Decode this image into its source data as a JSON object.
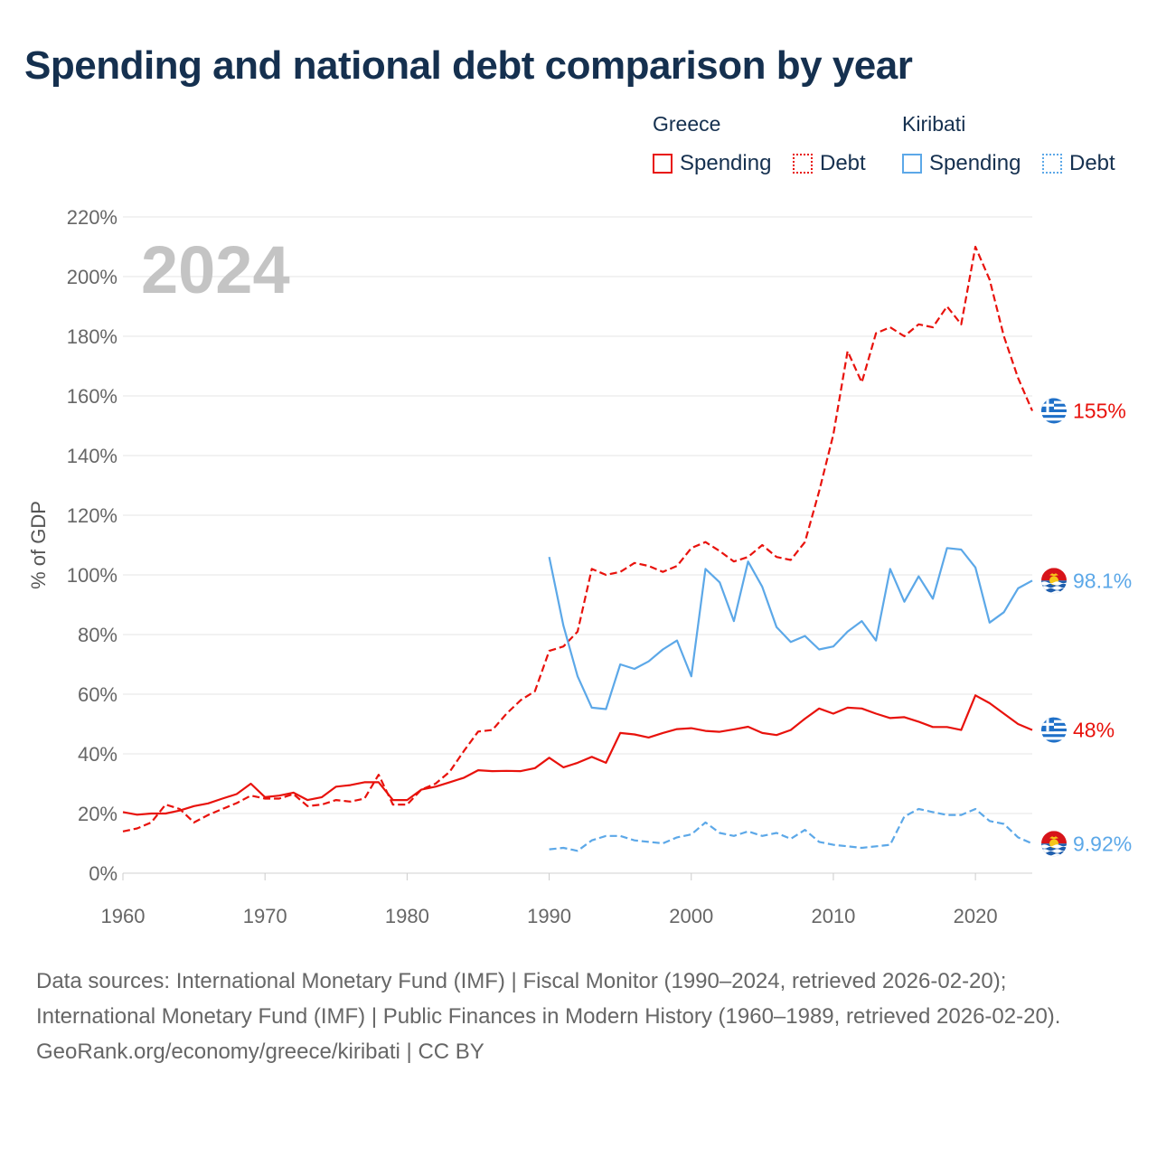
{
  "title": "Spending and national debt comparison by year",
  "legend": {
    "groups": [
      {
        "country": "Greece",
        "items": [
          {
            "label": "Spending",
            "color": "#e8120c",
            "style": "solid"
          },
          {
            "label": "Debt",
            "color": "#e8120c",
            "style": "dotted"
          }
        ]
      },
      {
        "country": "Kiribati",
        "items": [
          {
            "label": "Spending",
            "color": "#5ca8e8",
            "style": "solid"
          },
          {
            "label": "Debt",
            "color": "#5ca8e8",
            "style": "dotted"
          }
        ]
      }
    ]
  },
  "footer": {
    "sources": "Data sources: International Monetary Fund (IMF) | Fiscal Monitor (1990–2024, retrieved 2026-02-20); International Monetary Fund (IMF) | Public Finances in Modern History (1960–1989, retrieved 2026-02-20).",
    "credit": "GeoRank.org/economy/greece/kiribati | CC BY"
  },
  "chart_data": {
    "type": "line",
    "year_label": "2024",
    "ylabel": "% of GDP",
    "xlabel": "",
    "xlim": [
      1960,
      2024
    ],
    "ylim": [
      0,
      220
    ],
    "x_ticks": [
      1960,
      1970,
      1980,
      1990,
      2000,
      2010,
      2020
    ],
    "y_ticks": [
      0,
      20,
      40,
      60,
      80,
      100,
      120,
      140,
      160,
      180,
      200,
      220
    ],
    "y_tick_labels": [
      "0%",
      "20%",
      "40%",
      "60%",
      "80%",
      "100%",
      "120%",
      "140%",
      "160%",
      "180%",
      "200%",
      "220%"
    ],
    "grid": true,
    "series": [
      {
        "name": "Greece Spending",
        "country": "Greece",
        "flag": "greece",
        "color": "#e8120c",
        "dash": "solid",
        "end_label": "48%",
        "x_start": 1960,
        "values": [
          20.5,
          19.6,
          20,
          20,
          21,
          22.5,
          23.4,
          25,
          26.5,
          30,
          25.5,
          26,
          27,
          24.5,
          25.5,
          29,
          29.5,
          30.5,
          30.5,
          24.5,
          24.5,
          28,
          29,
          30.5,
          32,
          34.5,
          34.2,
          34.3,
          34.2,
          35.2,
          38.7,
          35.5,
          37,
          39,
          37,
          47,
          46.5,
          45.5,
          47,
          48.3,
          48.6,
          47.7,
          47.4,
          48.2,
          49.1,
          47,
          46.3,
          48,
          51.8,
          55.2,
          53.5,
          55.5,
          55.2,
          53.5,
          52,
          52.3,
          50.8,
          49,
          49,
          48,
          59.6,
          57,
          53.5,
          50,
          48
        ]
      },
      {
        "name": "Greece Debt",
        "country": "Greece",
        "flag": "greece",
        "color": "#e8120c",
        "dash": "dashed",
        "end_label": "155%",
        "x_start": 1960,
        "values": [
          14,
          15,
          17,
          23,
          21.5,
          17,
          19.5,
          21.5,
          23.5,
          26,
          25,
          25,
          26.5,
          22.5,
          23,
          24.5,
          24,
          25,
          33,
          23,
          23,
          28,
          30,
          34,
          41,
          47.5,
          48,
          53.5,
          58,
          61,
          74.5,
          76,
          81,
          102,
          100,
          101,
          104,
          103,
          101,
          103,
          109,
          111,
          108,
          104.5,
          106,
          110,
          106,
          105,
          111,
          128,
          147,
          175,
          164.5,
          181,
          183,
          180,
          184,
          183,
          190,
          184,
          210,
          199,
          180,
          166,
          155
        ]
      },
      {
        "name": "Kiribati Spending",
        "country": "Kiribati",
        "flag": "kiribati",
        "color": "#5ca8e8",
        "dash": "solid",
        "end_label": "98.1%",
        "x_start": 1990,
        "values": [
          106,
          83,
          66,
          55.5,
          55,
          70,
          68.5,
          71,
          75,
          78,
          66,
          102,
          97.5,
          84.5,
          104.5,
          96,
          82.5,
          77.5,
          79.5,
          75,
          76,
          81,
          84.5,
          78,
          102,
          91,
          99.5,
          92,
          109,
          108.5,
          102.5,
          84,
          87.5,
          95.5,
          98.1
        ]
      },
      {
        "name": "Kiribati Debt",
        "country": "Kiribati",
        "flag": "kiribati",
        "color": "#5ca8e8",
        "dash": "dashed",
        "end_label": "9.92%",
        "x_start": 1990,
        "values": [
          8,
          8.5,
          7.5,
          11,
          12.5,
          12.5,
          11,
          10.5,
          10,
          12,
          13,
          17,
          13.5,
          12.5,
          14,
          12.5,
          13.5,
          11.5,
          14.5,
          10.5,
          9.5,
          9,
          8.5,
          9,
          9.5,
          19,
          21.5,
          20.5,
          19.5,
          19.5,
          21.5,
          17.5,
          16.5,
          12,
          9.92
        ]
      }
    ]
  }
}
